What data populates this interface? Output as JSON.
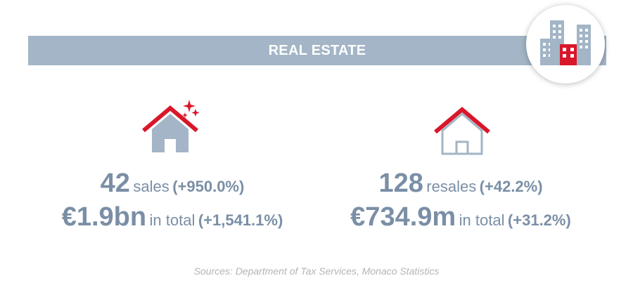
{
  "header": {
    "title": "REAL ESTATE",
    "badge_icon": "buildings-icon",
    "colors": {
      "banner": "#a3b5c6",
      "accent": "#d9162a",
      "text": "#7a8fa6"
    }
  },
  "left": {
    "icon": "new-house-icon",
    "count": "42",
    "count_label": "sales",
    "count_change": "(+950.0%)",
    "amount": "€1.9bn",
    "amount_label": "in total",
    "amount_change": "(+1,541.1%)"
  },
  "right": {
    "icon": "house-outline-icon",
    "count": "128",
    "count_label": "resales",
    "count_change": "(+42.2%)",
    "amount": "€734.9m",
    "amount_label": "in total",
    "amount_change": "(+31.2%)"
  },
  "footer": {
    "source": "Sources: Department of Tax Services, Monaco Statistics"
  }
}
